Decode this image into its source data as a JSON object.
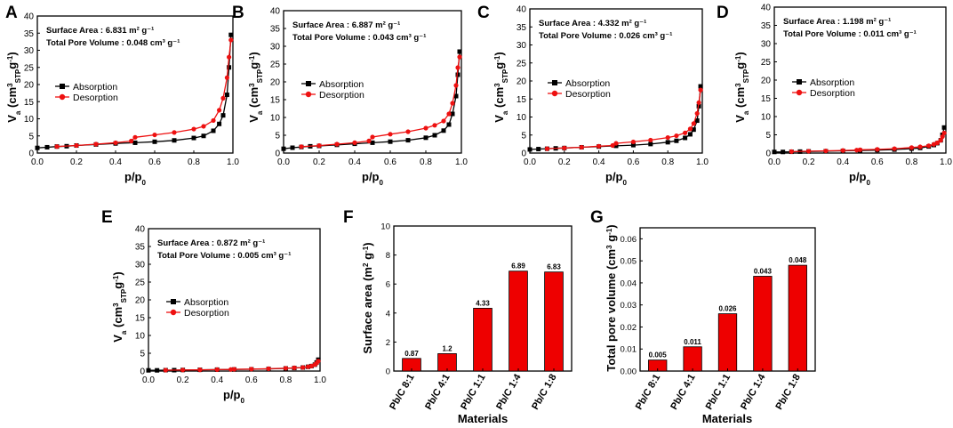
{
  "chart_data": [
    {
      "type": "line",
      "panel": "A",
      "xlabel": "p/p0",
      "ylabel": "Va (cm3 STP g-1)",
      "xlim": [
        0,
        1.0
      ],
      "ylim": [
        0,
        40
      ],
      "xticks": [
        "0.0",
        "0.2",
        "0.4",
        "0.6",
        "0.8",
        "1.0"
      ],
      "yticks": [
        "0",
        "5",
        "10",
        "15",
        "20",
        "25",
        "30",
        "35",
        "40"
      ],
      "annotation": {
        "surface_area": "Surface Area : 6.831 m² g⁻¹",
        "pore_volume": "Total Pore Volume :  0.048 cm³ g⁻¹"
      },
      "legend": [
        "Absorption",
        "Desorption"
      ],
      "series": [
        {
          "name": "Absorption",
          "color": "#000000",
          "x": [
            0.0,
            0.05,
            0.1,
            0.15,
            0.2,
            0.3,
            0.4,
            0.5,
            0.6,
            0.7,
            0.8,
            0.85,
            0.9,
            0.93,
            0.95,
            0.97,
            0.98,
            0.99
          ],
          "y": [
            1.5,
            1.7,
            1.9,
            2.0,
            2.2,
            2.5,
            2.8,
            3.0,
            3.3,
            3.7,
            4.4,
            5.0,
            6.5,
            8.5,
            11.0,
            17.0,
            25.0,
            34.5
          ]
        },
        {
          "name": "Desorption",
          "color": "#ee1111",
          "x": [
            0.99,
            0.98,
            0.97,
            0.95,
            0.93,
            0.9,
            0.85,
            0.8,
            0.7,
            0.6,
            0.5,
            0.48,
            0.4,
            0.3,
            0.2,
            0.1
          ],
          "y": [
            33.0,
            28.0,
            22.0,
            16.0,
            12.5,
            9.5,
            7.8,
            7.0,
            6.0,
            5.3,
            4.6,
            3.5,
            3.0,
            2.6,
            2.2,
            1.9
          ]
        }
      ]
    },
    {
      "type": "line",
      "panel": "B",
      "xlabel": "p/p0",
      "ylabel": "Va (cm3 STP g-1)",
      "xlim": [
        0,
        1.0
      ],
      "ylim": [
        0,
        40
      ],
      "xticks": [
        "0.0",
        "0.2",
        "0.4",
        "0.6",
        "0.8",
        "1.0"
      ],
      "yticks": [
        "0",
        "5",
        "10",
        "15",
        "20",
        "25",
        "30",
        "35",
        "40"
      ],
      "annotation": {
        "surface_area": "Surface Area : 6.887 m² g⁻¹",
        "pore_volume": "Total Pore Volume :  0.043 cm³ g⁻¹"
      },
      "legend": [
        "Absorption",
        "Desorption"
      ],
      "series": [
        {
          "name": "Absorption",
          "color": "#000000",
          "x": [
            0.0,
            0.05,
            0.1,
            0.15,
            0.2,
            0.3,
            0.4,
            0.5,
            0.6,
            0.7,
            0.8,
            0.85,
            0.9,
            0.93,
            0.95,
            0.97,
            0.98,
            0.99
          ],
          "y": [
            1.2,
            1.5,
            1.7,
            1.9,
            2.0,
            2.3,
            2.6,
            2.9,
            3.2,
            3.6,
            4.3,
            5.0,
            6.3,
            8.0,
            11.0,
            16.0,
            22.0,
            28.5
          ]
        },
        {
          "name": "Desorption",
          "color": "#ee1111",
          "x": [
            0.99,
            0.98,
            0.97,
            0.95,
            0.93,
            0.9,
            0.85,
            0.8,
            0.7,
            0.6,
            0.5,
            0.48,
            0.4,
            0.3,
            0.2,
            0.1
          ],
          "y": [
            27.0,
            24.0,
            19.0,
            14.0,
            11.0,
            9.0,
            7.8,
            7.0,
            6.0,
            5.3,
            4.5,
            3.4,
            2.9,
            2.5,
            2.1,
            1.8
          ]
        }
      ]
    },
    {
      "type": "line",
      "panel": "C",
      "xlabel": "p/p0",
      "ylabel": "Va (cm3 STP g-1)",
      "xlim": [
        0,
        1.0
      ],
      "ylim": [
        0,
        40
      ],
      "xticks": [
        "0.0",
        "0.2",
        "0.4",
        "0.6",
        "0.8",
        "1.0"
      ],
      "yticks": [
        "0",
        "5",
        "10",
        "15",
        "20",
        "25",
        "30",
        "35",
        "40"
      ],
      "annotation": {
        "surface_area": "Surface Area : 4.332 m² g⁻¹",
        "pore_volume": "Total Pore Volume :  0.026 cm³ g⁻¹"
      },
      "legend": [
        "Absorption",
        "Desorption"
      ],
      "series": [
        {
          "name": "Absorption",
          "color": "#000000",
          "x": [
            0.0,
            0.05,
            0.1,
            0.15,
            0.2,
            0.3,
            0.4,
            0.5,
            0.6,
            0.7,
            0.8,
            0.85,
            0.9,
            0.93,
            0.95,
            0.97,
            0.98,
            0.99
          ],
          "y": [
            1.0,
            1.1,
            1.2,
            1.3,
            1.4,
            1.6,
            1.8,
            2.0,
            2.2,
            2.5,
            3.0,
            3.4,
            4.2,
            5.2,
            6.5,
            9.0,
            13.0,
            18.5
          ]
        },
        {
          "name": "Desorption",
          "color": "#ee1111",
          "x": [
            0.99,
            0.98,
            0.97,
            0.95,
            0.93,
            0.9,
            0.85,
            0.8,
            0.7,
            0.6,
            0.5,
            0.48,
            0.4,
            0.3,
            0.2,
            0.1
          ],
          "y": [
            17.5,
            14.0,
            11.0,
            8.2,
            6.7,
            5.6,
            4.8,
            4.3,
            3.6,
            3.1,
            2.7,
            2.1,
            1.9,
            1.6,
            1.4,
            1.2
          ]
        }
      ]
    },
    {
      "type": "line",
      "panel": "D",
      "xlabel": "p/p0",
      "ylabel": "Va (cm3 STP g-1)",
      "xlim": [
        0,
        1.0
      ],
      "ylim": [
        0,
        40
      ],
      "xticks": [
        "0.0",
        "0.2",
        "0.4",
        "0.6",
        "0.8",
        "1.0"
      ],
      "yticks": [
        "0",
        "5",
        "10",
        "15",
        "20",
        "25",
        "30",
        "35",
        "40"
      ],
      "annotation": {
        "surface_area": "Surface Area : 1.198 m² g⁻¹",
        "pore_volume": "Total Pore Volume :  0.011 cm³ g⁻¹"
      },
      "legend": [
        "Absorption",
        "Desorption"
      ],
      "series": [
        {
          "name": "Absorption",
          "color": "#000000",
          "x": [
            0.0,
            0.05,
            0.1,
            0.15,
            0.2,
            0.3,
            0.4,
            0.5,
            0.6,
            0.7,
            0.8,
            0.85,
            0.9,
            0.93,
            0.95,
            0.97,
            0.98,
            0.99
          ],
          "y": [
            0.3,
            0.3,
            0.35,
            0.4,
            0.45,
            0.5,
            0.6,
            0.7,
            0.8,
            0.95,
            1.2,
            1.4,
            1.8,
            2.2,
            2.7,
            3.5,
            5.0,
            7.0
          ]
        },
        {
          "name": "Desorption",
          "color": "#ee1111",
          "x": [
            0.99,
            0.98,
            0.97,
            0.95,
            0.93,
            0.9,
            0.85,
            0.8,
            0.7,
            0.6,
            0.5,
            0.48,
            0.4,
            0.3,
            0.2,
            0.1
          ],
          "y": [
            5.5,
            4.5,
            3.5,
            2.8,
            2.4,
            2.0,
            1.7,
            1.5,
            1.2,
            1.0,
            0.9,
            0.8,
            0.7,
            0.6,
            0.5,
            0.4
          ]
        }
      ]
    },
    {
      "type": "line",
      "panel": "E",
      "xlabel": "p/p0",
      "ylabel": "Va (cm3 STP g-1)",
      "xlim": [
        0,
        1.0
      ],
      "ylim": [
        0,
        40
      ],
      "xticks": [
        "0.0",
        "0.2",
        "0.4",
        "0.6",
        "0.8",
        "1.0"
      ],
      "yticks": [
        "0",
        "5",
        "10",
        "15",
        "20",
        "25",
        "30",
        "35",
        "40"
      ],
      "annotation": {
        "surface_area": "Surface Area : 0.872 m² g⁻¹",
        "pore_volume": "Total Pore Volume :  0.005 cm³ g⁻¹"
      },
      "legend": [
        "Absorption",
        "Desorption"
      ],
      "series": [
        {
          "name": "Absorption",
          "color": "#000000",
          "x": [
            0.0,
            0.05,
            0.1,
            0.15,
            0.2,
            0.3,
            0.4,
            0.5,
            0.6,
            0.7,
            0.8,
            0.85,
            0.9,
            0.93,
            0.95,
            0.97,
            0.98,
            0.99
          ],
          "y": [
            0.2,
            0.2,
            0.25,
            0.25,
            0.3,
            0.35,
            0.4,
            0.45,
            0.5,
            0.6,
            0.75,
            0.85,
            1.0,
            1.2,
            1.4,
            1.8,
            2.4,
            3.2
          ]
        },
        {
          "name": "Desorption",
          "color": "#ee1111",
          "x": [
            0.99,
            0.98,
            0.97,
            0.95,
            0.93,
            0.9,
            0.85,
            0.8,
            0.7,
            0.6,
            0.5,
            0.48,
            0.4,
            0.3,
            0.2,
            0.1
          ],
          "y": [
            2.8,
            2.2,
            1.8,
            1.4,
            1.2,
            1.0,
            0.9,
            0.8,
            0.65,
            0.55,
            0.5,
            0.45,
            0.4,
            0.35,
            0.3,
            0.25
          ]
        }
      ]
    },
    {
      "type": "bar",
      "panel": "F",
      "xlabel": "Materials",
      "ylabel": "Surface area (m2 g-1)",
      "ylim": [
        0,
        10
      ],
      "yticks": [
        "0",
        "2",
        "4",
        "6",
        "8",
        "10"
      ],
      "categories": [
        "Pb/C 8:1",
        "Pb/C 4:1",
        "Pb/C 1:1",
        "Pb/C 1:4",
        "Pb/C 1:8"
      ],
      "values": [
        0.87,
        1.2,
        4.33,
        6.89,
        6.83
      ],
      "labels": [
        "0.87",
        "1.2",
        "4.33",
        "6.89",
        "6.83"
      ],
      "color": "#ee0000"
    },
    {
      "type": "bar",
      "panel": "G",
      "xlabel": "Materials",
      "ylabel": "Total pore volume (cm3 g-1)",
      "ylim": [
        0,
        0.065
      ],
      "yticks": [
        "0.00",
        "0.01",
        "0.02",
        "0.03",
        "0.04",
        "0.05",
        "0.06"
      ],
      "categories": [
        "Pb/C 8:1",
        "Pb/C 4:1",
        "Pb/C 1:1",
        "Pb/C 1:4",
        "Pb/C 1:8"
      ],
      "values": [
        0.005,
        0.011,
        0.026,
        0.043,
        0.048
      ],
      "labels": [
        "0.005",
        "0.011",
        "0.026",
        "0.043",
        "0.048"
      ],
      "color": "#ee0000"
    }
  ]
}
